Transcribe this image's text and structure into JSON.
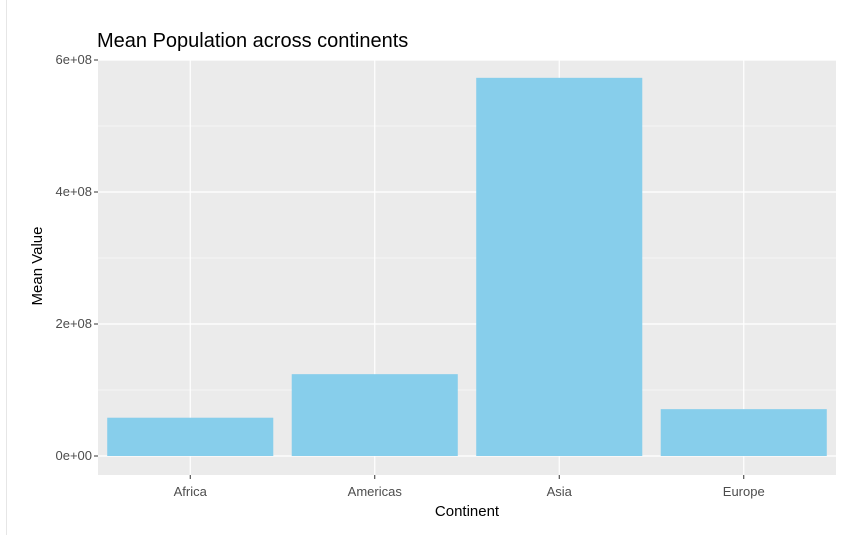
{
  "chart_data": {
    "type": "bar",
    "title": "Mean Population across continents",
    "xlabel": "Continent",
    "ylabel": "Mean Value",
    "categories": [
      "Africa",
      "Americas",
      "Asia",
      "Europe"
    ],
    "values": [
      58000000,
      124000000,
      573000000,
      71000000
    ],
    "ylim": [
      0,
      600000000
    ],
    "yticks": [
      {
        "value": 0,
        "label": "0e+00"
      },
      {
        "value": 200000000,
        "label": "2e+08"
      },
      {
        "value": 400000000,
        "label": "4e+08"
      },
      {
        "value": 600000000,
        "label": "6e+08"
      }
    ],
    "grid": true,
    "legend": "none",
    "bar_color": "#87CEEB",
    "panel_color": "#EBEBEB"
  }
}
